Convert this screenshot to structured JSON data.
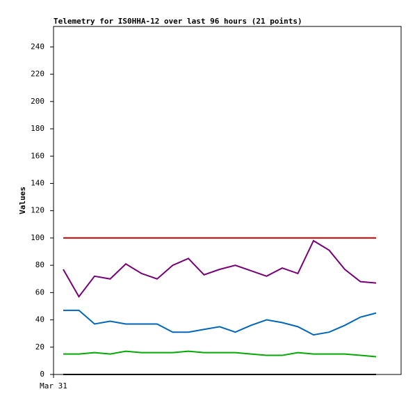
{
  "chart_data": {
    "type": "line",
    "title": "Telemetry for IS0HHA-12 over last 96 hours (21 points)",
    "y_label": "Values",
    "categories": [
      "Mar 31",
      null,
      null,
      null,
      null,
      null,
      null,
      null,
      null,
      null,
      null,
      null,
      null,
      null,
      null,
      null,
      null,
      null,
      null,
      null,
      null
    ],
    "series": [
      {
        "color": "#dd0000",
        "values": [
          100,
          100,
          100,
          100,
          100,
          100,
          100,
          100,
          100,
          100,
          100,
          100,
          100,
          100,
          100,
          100,
          100,
          100,
          100,
          100,
          100
        ]
      },
      {
        "color": "#770077",
        "values": [
          77,
          57,
          72,
          70,
          81,
          74,
          70,
          80,
          85,
          73,
          77,
          80,
          76,
          72,
          78,
          74,
          98,
          91,
          77,
          68,
          67
        ]
      },
      {
        "color": "#0066bb",
        "values": [
          47,
          47,
          37,
          39,
          37,
          37,
          37,
          31,
          31,
          33,
          35,
          31,
          36,
          40,
          38,
          35,
          29,
          31,
          36,
          42,
          45
        ]
      },
      {
        "color": "#00aa00",
        "values": [
          15,
          15,
          16,
          15,
          17,
          16,
          16,
          16,
          17,
          16,
          16,
          16,
          15,
          14,
          14,
          16,
          15,
          15,
          15,
          14,
          13
        ]
      },
      {
        "color": "#000000",
        "values": [
          0,
          0,
          0,
          0,
          0,
          0,
          0,
          0,
          0,
          0,
          0,
          0,
          0,
          0,
          0,
          0,
          0,
          0,
          0,
          0,
          0
        ]
      }
    ],
    "ylim": [
      0,
      255
    ],
    "yticks": [
      0,
      20,
      40,
      60,
      80,
      100,
      120,
      140,
      160,
      180,
      200,
      220,
      240
    ]
  }
}
